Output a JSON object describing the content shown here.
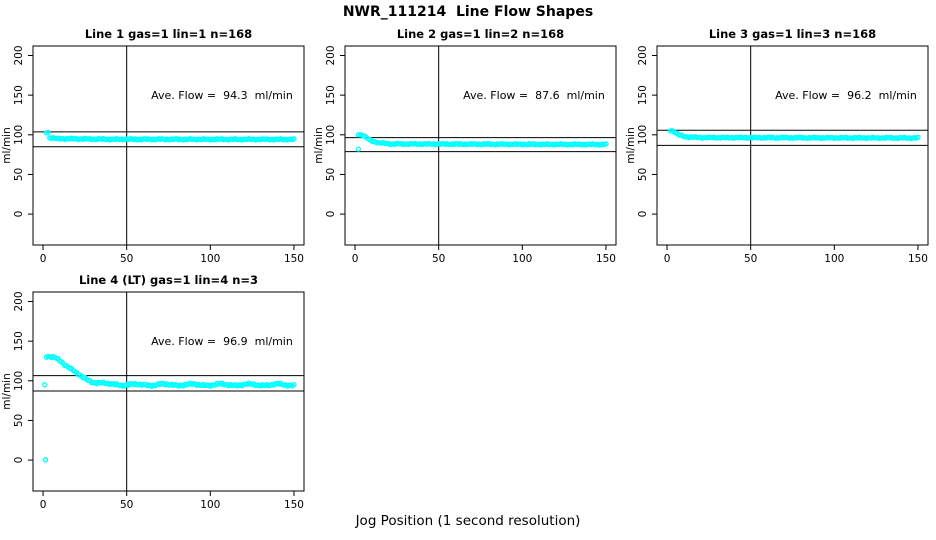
{
  "title": "NWR_111214  Line Flow Shapes",
  "xlabel": "Jog Position (1 second resolution)",
  "colors": {
    "points": "#00FFFF",
    "axis": "#000000",
    "background": "#FFFFFF"
  },
  "axes": {
    "xlim": [
      -6,
      156
    ],
    "ylim": [
      -39,
      212
    ],
    "xticks": [
      0,
      50,
      100,
      150
    ],
    "yticks": [
      0,
      50,
      100,
      150,
      200
    ],
    "ylabel": "ml/min"
  },
  "chart_data": [
    {
      "type": "scatter",
      "title": "Line 1 gas=1 lin=1 n=168",
      "annotation": "Ave. Flow =  94.3  ml/min",
      "ave_flow_ml_min": 94.3,
      "hlines": [
        103.7,
        84.9
      ],
      "vline_x": 50,
      "grid_row": 0,
      "grid_col": 0,
      "series": [
        {
          "name": "flow",
          "anchors": [
            [
              2,
              103
            ],
            [
              3,
              103
            ],
            [
              4,
              96.5
            ],
            [
              8,
              95.2
            ],
            [
              40,
              94.4
            ],
            [
              150,
              94.2
            ]
          ],
          "x_start": 2,
          "x_end": 150,
          "x_step": 1,
          "noise_amp": 0.9,
          "wave_amp": 0,
          "wave_period": 20
        }
      ],
      "outliers": []
    },
    {
      "type": "scatter",
      "title": "Line 2 gas=1 lin=2 n=168",
      "annotation": "Ave. Flow =  87.6  ml/min",
      "ave_flow_ml_min": 87.6,
      "hlines": [
        96.4,
        78.8
      ],
      "vline_x": 50,
      "grid_row": 0,
      "grid_col": 1,
      "series": [
        {
          "name": "flow",
          "anchors": [
            [
              2,
              100.5
            ],
            [
              5,
              99.5
            ],
            [
              9,
              93
            ],
            [
              14,
              90
            ],
            [
              22,
              88.5
            ],
            [
              150,
              87.8
            ]
          ],
          "x_start": 2,
          "x_end": 150,
          "x_step": 1,
          "noise_amp": 0.9,
          "wave_amp": 0,
          "wave_period": 20
        }
      ],
      "outliers": [
        [
          2,
          82
        ]
      ]
    },
    {
      "type": "scatter",
      "title": "Line 3 gas=1 lin=3 n=168",
      "annotation": "Ave. Flow =  96.2  ml/min",
      "ave_flow_ml_min": 96.2,
      "hlines": [
        105.8,
        86.6
      ],
      "vline_x": 50,
      "grid_row": 0,
      "grid_col": 2,
      "series": [
        {
          "name": "flow",
          "anchors": [
            [
              2,
              105.5
            ],
            [
              4,
              104.5
            ],
            [
              7,
              100
            ],
            [
              11,
              97.5
            ],
            [
              20,
              96.5
            ],
            [
              150,
              96
            ]
          ],
          "x_start": 2,
          "x_end": 150,
          "x_step": 1,
          "noise_amp": 0.9,
          "wave_amp": 0,
          "wave_period": 20
        }
      ],
      "outliers": []
    },
    {
      "type": "scatter",
      "title": "Line 4 (LT) gas=1 lin=4 n=3",
      "annotation": "Ave. Flow =  96.9  ml/min",
      "ave_flow_ml_min": 96.9,
      "hlines": [
        106.6,
        87.2
      ],
      "vline_x": 50,
      "grid_row": 1,
      "grid_col": 0,
      "series": [
        {
          "name": "flow",
          "anchors": [
            [
              2,
              130
            ],
            [
              7,
              129
            ],
            [
              11,
              125
            ],
            [
              15,
              118
            ],
            [
              19,
              111
            ],
            [
              23,
              105
            ],
            [
              27,
              101
            ],
            [
              32,
              98
            ],
            [
              38,
              96
            ],
            [
              50,
              95
            ],
            [
              150,
              95
            ]
          ],
          "x_start": 2,
          "x_end": 150,
          "x_step": 1,
          "noise_amp": 1.3,
          "wave_amp": 1.0,
          "wave_period": 17
        }
      ],
      "outliers": [
        [
          1,
          95
        ],
        [
          1.5,
          0.5
        ]
      ]
    }
  ]
}
